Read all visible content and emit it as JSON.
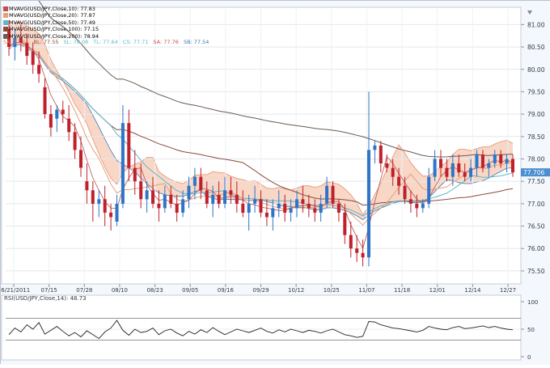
{
  "chart_data": {
    "type": "candlestick",
    "instrument": "USD/JPY",
    "price_ticks": [
      "81.00",
      "80.50",
      "80.00",
      "79.50",
      "79.00",
      "78.50",
      "78.00",
      "77.50",
      "77.00",
      "76.50",
      "76.00",
      "75.50"
    ],
    "price_range": [
      75.3,
      81.35
    ],
    "date_ticks": [
      "06/21/2011",
      "07/15",
      "07/28",
      "08/10",
      "08/23",
      "09/05",
      "09/16",
      "09/29",
      "10/12",
      "10/25",
      "11/07",
      "11/18",
      "12/01",
      "12/14",
      "12/27"
    ],
    "last_price_label": "77.706",
    "legend": [
      {
        "label": "MVAVG(USD/JPY,Close,10): 77.83",
        "color": "#c0504d"
      },
      {
        "label": "MVAVG(USD/JPY,Close,20): 77.87",
        "color": "#e8a07a"
      },
      {
        "label": "MVAVG(USD/JPY,Close,50): 77.49",
        "color": "#5fb8c8"
      },
      {
        "label": "MVAVG(USD/JPY,Close,100): 77.15",
        "color": "#8a4b3c"
      },
      {
        "label": "MVAVG(USD/JPY,Close,200): 78.94",
        "color": "#6b5a52"
      }
    ],
    "ichimoku_legend": [
      {
        "label": "SA: 77.44",
        "color": "#e08060"
      },
      {
        "label": "BL: 77.55",
        "color": "#8a4b3c"
      },
      {
        "label": "SL: 78.08",
        "color": "#5fb8c8"
      },
      {
        "label": "TL: 77.64",
        "color": "#5fb8c8"
      },
      {
        "label": "CS: 77.71",
        "color": "#5fb8c8"
      },
      {
        "label": "SA: 77.76",
        "color": "#c0504d"
      },
      {
        "label": "SB: 77.54",
        "color": "#3a7ab8"
      }
    ],
    "ohlc": [
      [
        80.9,
        81.1,
        80.3,
        80.5
      ],
      [
        80.5,
        80.9,
        80.2,
        80.7
      ],
      [
        80.7,
        81.0,
        80.4,
        80.6
      ],
      [
        80.6,
        80.8,
        80.1,
        80.3
      ],
      [
        80.4,
        80.6,
        79.9,
        80.1
      ],
      [
        80.1,
        80.4,
        79.7,
        79.9
      ],
      [
        79.6,
        79.8,
        78.9,
        79.0
      ],
      [
        79.0,
        79.2,
        78.5,
        78.7
      ],
      [
        78.9,
        79.2,
        78.6,
        79.1
      ],
      [
        79.1,
        79.3,
        78.8,
        79.0
      ],
      [
        78.9,
        79.2,
        78.4,
        78.6
      ],
      [
        78.6,
        78.8,
        78.0,
        78.2
      ],
      [
        78.2,
        78.5,
        77.6,
        77.8
      ],
      [
        77.5,
        77.9,
        77.0,
        77.3
      ],
      [
        77.3,
        77.5,
        76.6,
        77.0
      ],
      [
        77.0,
        77.3,
        76.7,
        77.1
      ],
      [
        77.1,
        77.4,
        76.5,
        76.8
      ],
      [
        76.8,
        77.0,
        76.4,
        76.7
      ],
      [
        76.6,
        77.2,
        76.5,
        77.0
      ],
      [
        77.0,
        79.2,
        76.9,
        78.8
      ],
      [
        78.8,
        79.1,
        77.5,
        77.8
      ],
      [
        77.8,
        78.2,
        77.2,
        77.5
      ],
      [
        77.5,
        77.9,
        76.9,
        77.1
      ],
      [
        77.1,
        77.5,
        76.8,
        77.3
      ],
      [
        77.3,
        77.6,
        76.9,
        77.0
      ],
      [
        77.0,
        77.3,
        76.6,
        76.9
      ],
      [
        76.9,
        77.4,
        76.8,
        77.2
      ],
      [
        77.2,
        77.4,
        76.9,
        77.0
      ],
      [
        77.0,
        77.2,
        76.6,
        76.8
      ],
      [
        76.8,
        77.3,
        76.7,
        77.1
      ],
      [
        77.1,
        77.6,
        76.9,
        77.4
      ],
      [
        77.4,
        77.8,
        77.1,
        77.6
      ],
      [
        77.6,
        77.8,
        77.1,
        77.3
      ],
      [
        77.3,
        77.5,
        76.9,
        77.0
      ],
      [
        77.0,
        77.4,
        76.7,
        77.2
      ],
      [
        77.2,
        77.5,
        76.9,
        77.0
      ],
      [
        77.0,
        77.6,
        76.9,
        77.3
      ],
      [
        77.3,
        77.6,
        77.0,
        77.2
      ],
      [
        77.2,
        77.5,
        76.8,
        77.0
      ],
      [
        77.0,
        77.3,
        76.7,
        76.8
      ],
      [
        76.8,
        77.2,
        76.4,
        77.0
      ],
      [
        77.0,
        77.4,
        76.8,
        77.1
      ],
      [
        77.1,
        77.3,
        76.7,
        76.8
      ],
      [
        76.8,
        77.1,
        76.5,
        76.7
      ],
      [
        76.7,
        77.1,
        76.4,
        76.9
      ],
      [
        76.9,
        77.3,
        76.7,
        77.0
      ],
      [
        77.0,
        77.2,
        76.6,
        76.8
      ],
      [
        76.8,
        77.1,
        76.6,
        76.9
      ],
      [
        76.9,
        77.3,
        76.7,
        77.1
      ],
      [
        77.1,
        77.4,
        76.8,
        77.0
      ],
      [
        77.0,
        77.2,
        76.7,
        76.9
      ],
      [
        76.9,
        77.1,
        76.6,
        76.8
      ],
      [
        76.8,
        77.2,
        76.6,
        77.0
      ],
      [
        77.0,
        77.6,
        76.9,
        77.4
      ],
      [
        77.4,
        77.5,
        76.9,
        77.0
      ],
      [
        77.0,
        77.1,
        76.6,
        76.8
      ],
      [
        76.8,
        77.0,
        76.1,
        76.3
      ],
      [
        76.3,
        76.6,
        75.8,
        76.0
      ],
      [
        76.0,
        76.3,
        75.7,
        75.9
      ],
      [
        75.9,
        76.2,
        75.6,
        75.8
      ],
      [
        75.8,
        79.5,
        75.6,
        78.2
      ],
      [
        78.2,
        78.4,
        77.9,
        78.3
      ],
      [
        78.3,
        78.4,
        77.7,
        77.9
      ],
      [
        77.9,
        78.1,
        77.7,
        77.8
      ],
      [
        77.8,
        78.0,
        77.4,
        77.6
      ],
      [
        77.6,
        77.8,
        77.2,
        77.4
      ],
      [
        77.4,
        77.6,
        77.0,
        77.1
      ],
      [
        77.1,
        77.3,
        76.8,
        77.0
      ],
      [
        77.0,
        77.2,
        76.7,
        76.9
      ],
      [
        76.9,
        77.1,
        76.8,
        77.0
      ],
      [
        77.0,
        77.8,
        76.9,
        77.6
      ],
      [
        77.6,
        78.2,
        77.5,
        78.0
      ],
      [
        78.0,
        78.2,
        77.6,
        77.8
      ],
      [
        77.8,
        78.0,
        77.5,
        77.6
      ],
      [
        77.6,
        78.1,
        77.4,
        77.9
      ],
      [
        77.9,
        78.1,
        77.6,
        77.7
      ],
      [
        77.7,
        77.9,
        77.5,
        77.6
      ],
      [
        77.6,
        78.0,
        77.5,
        77.8
      ],
      [
        77.8,
        78.2,
        77.6,
        78.1
      ],
      [
        78.1,
        78.2,
        77.7,
        77.8
      ],
      [
        77.8,
        78.0,
        77.6,
        77.9
      ],
      [
        77.9,
        78.2,
        77.8,
        78.1
      ],
      [
        78.1,
        78.2,
        77.8,
        77.9
      ],
      [
        77.9,
        78.1,
        77.7,
        78.0
      ],
      [
        78.0,
        78.1,
        77.6,
        77.7
      ]
    ],
    "rsi": {
      "label": "RSI(USD/JPY,Close,14): 48.73",
      "ticks": [
        "100",
        "50",
        "0"
      ],
      "reference_lines": [
        70,
        30
      ],
      "values": [
        40,
        52,
        45,
        58,
        50,
        62,
        41,
        48,
        55,
        46,
        38,
        44,
        36,
        47,
        40,
        33,
        45,
        52,
        66,
        48,
        39,
        50,
        44,
        46,
        52,
        40,
        47,
        50,
        43,
        38,
        46,
        41,
        49,
        44,
        53,
        46,
        40,
        45,
        50,
        47,
        44,
        48,
        52,
        46,
        43,
        49,
        45,
        50,
        47,
        44,
        48,
        46,
        43,
        47,
        50,
        45,
        40,
        38,
        35,
        37,
        64,
        63,
        58,
        55,
        52,
        51,
        49,
        47,
        45,
        48,
        55,
        52,
        50,
        49,
        53,
        55,
        51,
        52,
        54,
        56,
        53,
        55,
        52,
        50,
        49
      ]
    }
  }
}
